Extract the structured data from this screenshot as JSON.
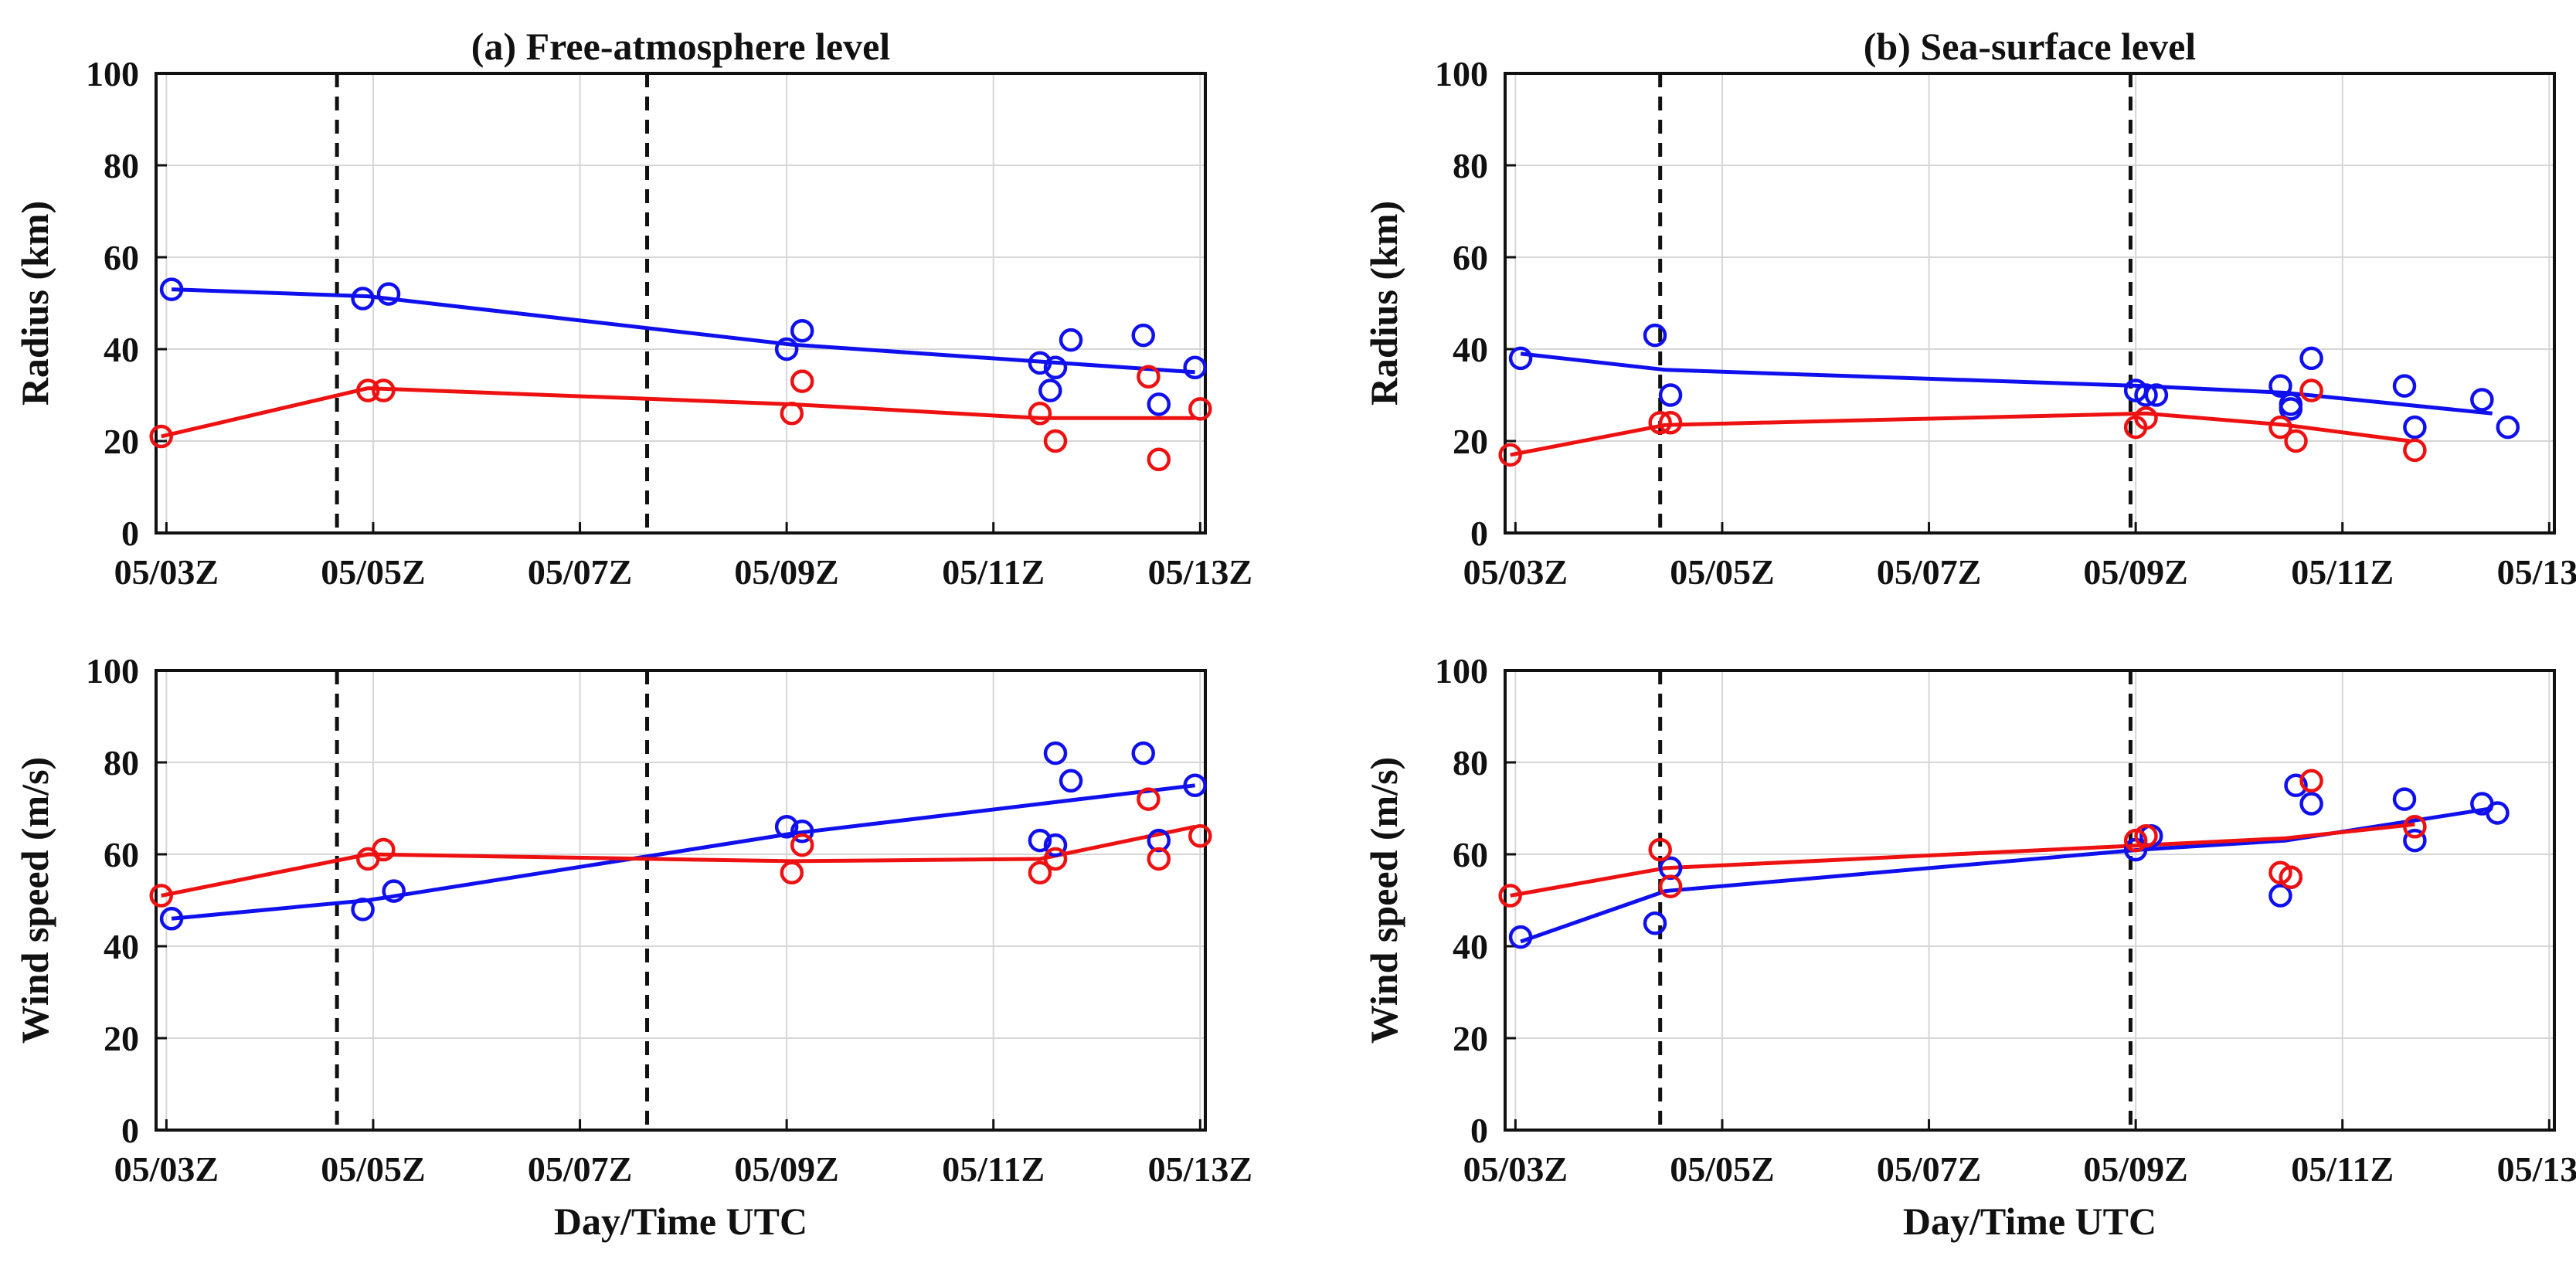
{
  "colors": {
    "blue": "#1010ee",
    "red": "#ee1111",
    "grid": "#d6d6d6",
    "axis": "#111111",
    "vline": "#111111"
  },
  "xticks": [
    "05/03Z",
    "05/05Z",
    "05/07Z",
    "05/09Z",
    "05/11Z",
    "05/13Z"
  ],
  "xtick_values": [
    0,
    2,
    4,
    6,
    8,
    10
  ],
  "yticks": [
    "0",
    "20",
    "40",
    "60",
    "80",
    "100"
  ],
  "chart_data": [
    {
      "id": "a-radius",
      "type": "line+scatter",
      "title": "(a) Free-atmosphere level",
      "ylabel": "Radius (km)",
      "xlabel": "",
      "xunit": "days since 05/03 00Z",
      "xlim": [
        -0.1,
        10.05
      ],
      "ylim": [
        0,
        100
      ],
      "grid": true,
      "vlines": [
        1.65,
        4.65
      ],
      "series": [
        {
          "name": "blue",
          "color": "blue",
          "line": [
            [
              0.05,
              53
            ],
            [
              1.95,
              51.5
            ],
            [
              6.05,
              41
            ],
            [
              9.95,
              35
            ]
          ],
          "points": [
            [
              0.05,
              53
            ],
            [
              1.9,
              51
            ],
            [
              2.15,
              52
            ],
            [
              6.0,
              40
            ],
            [
              6.15,
              44
            ],
            [
              8.45,
              37
            ],
            [
              8.55,
              31
            ],
            [
              8.6,
              36
            ],
            [
              8.75,
              42
            ],
            [
              9.45,
              43
            ],
            [
              9.6,
              28
            ],
            [
              9.95,
              36
            ]
          ]
        },
        {
          "name": "red",
          "color": "red",
          "line": [
            [
              -0.05,
              21
            ],
            [
              1.95,
              31.5
            ],
            [
              6.05,
              28
            ],
            [
              8.45,
              25
            ],
            [
              9.95,
              25
            ]
          ],
          "points": [
            [
              -0.05,
              21
            ],
            [
              1.95,
              31
            ],
            [
              2.1,
              31
            ],
            [
              6.05,
              26
            ],
            [
              6.15,
              33
            ],
            [
              8.45,
              26
            ],
            [
              8.6,
              20
            ],
            [
              9.5,
              34
            ],
            [
              9.6,
              16
            ],
            [
              10.0,
              27
            ]
          ]
        }
      ]
    },
    {
      "id": "b-radius",
      "type": "line+scatter",
      "title": "(b) Sea-surface level",
      "ylabel": "Radius (km)",
      "xlabel": "",
      "xunit": "days since 05/03 00Z",
      "xlim": [
        -0.1,
        10.05
      ],
      "ylim": [
        0,
        100
      ],
      "grid": true,
      "vlines": [
        1.4,
        5.95
      ],
      "series": [
        {
          "name": "blue",
          "color": "blue",
          "line": [
            [
              0.05,
              39
            ],
            [
              1.45,
              35.5
            ],
            [
              6.05,
              32
            ],
            [
              7.45,
              30.5
            ],
            [
              9.45,
              26
            ]
          ],
          "points": [
            [
              0.05,
              38
            ],
            [
              1.35,
              43
            ],
            [
              1.5,
              30
            ],
            [
              6.0,
              31
            ],
            [
              6.1,
              30
            ],
            [
              6.2,
              30
            ],
            [
              7.4,
              32
            ],
            [
              7.5,
              27
            ],
            [
              7.5,
              28
            ],
            [
              7.7,
              38
            ],
            [
              8.6,
              32
            ],
            [
              8.7,
              23
            ],
            [
              9.35,
              29
            ],
            [
              9.6,
              23
            ]
          ]
        },
        {
          "name": "red",
          "color": "red",
          "line": [
            [
              -0.05,
              17
            ],
            [
              1.45,
              23.5
            ],
            [
              6.1,
              26
            ],
            [
              7.45,
              23.5
            ],
            [
              8.65,
              20
            ]
          ],
          "points": [
            [
              -0.05,
              17
            ],
            [
              1.4,
              24
            ],
            [
              1.5,
              24
            ],
            [
              6.0,
              23
            ],
            [
              6.1,
              25
            ],
            [
              7.4,
              23
            ],
            [
              7.55,
              20
            ],
            [
              7.7,
              31
            ],
            [
              8.7,
              18
            ]
          ]
        }
      ]
    },
    {
      "id": "a-wind",
      "type": "line+scatter",
      "title": "",
      "ylabel": "Wind speed (m/s)",
      "xlabel": "Day/Time UTC",
      "xunit": "days since 05/03 00Z",
      "xlim": [
        -0.1,
        10.05
      ],
      "ylim": [
        0,
        100
      ],
      "grid": true,
      "vlines": [
        1.65,
        4.65
      ],
      "series": [
        {
          "name": "blue",
          "color": "blue",
          "line": [
            [
              0.05,
              46
            ],
            [
              1.95,
              50
            ],
            [
              6.05,
              64.5
            ],
            [
              9.95,
              75
            ]
          ],
          "points": [
            [
              0.05,
              46
            ],
            [
              1.9,
              48
            ],
            [
              2.2,
              52
            ],
            [
              6.0,
              66
            ],
            [
              6.15,
              65
            ],
            [
              8.45,
              63
            ],
            [
              8.6,
              82
            ],
            [
              8.6,
              62
            ],
            [
              8.75,
              76
            ],
            [
              9.45,
              82
            ],
            [
              9.6,
              63
            ],
            [
              9.95,
              75
            ]
          ]
        },
        {
          "name": "red",
          "color": "red",
          "line": [
            [
              -0.05,
              51
            ],
            [
              1.95,
              60
            ],
            [
              6.05,
              58.5
            ],
            [
              8.45,
              59
            ],
            [
              9.95,
              66
            ]
          ],
          "points": [
            [
              -0.05,
              51
            ],
            [
              1.95,
              59
            ],
            [
              2.1,
              61
            ],
            [
              6.05,
              56
            ],
            [
              6.15,
              62
            ],
            [
              8.45,
              56
            ],
            [
              8.6,
              59
            ],
            [
              9.5,
              72
            ],
            [
              9.6,
              59
            ],
            [
              10.0,
              64
            ]
          ]
        }
      ]
    },
    {
      "id": "b-wind",
      "type": "line+scatter",
      "title": "",
      "ylabel": "Wind speed (m/s)",
      "xlabel": "Day/Time UTC",
      "xunit": "days since 05/03 00Z",
      "xlim": [
        -0.1,
        10.05
      ],
      "ylim": [
        0,
        100
      ],
      "grid": true,
      "vlines": [
        1.4,
        5.95
      ],
      "series": [
        {
          "name": "blue",
          "color": "blue",
          "line": [
            [
              0.05,
              41
            ],
            [
              1.45,
              52
            ],
            [
              6.05,
              61
            ],
            [
              7.45,
              63
            ],
            [
              9.45,
              70
            ]
          ],
          "points": [
            [
              0.05,
              42
            ],
            [
              1.35,
              45
            ],
            [
              1.5,
              57
            ],
            [
              6.0,
              61
            ],
            [
              6.15,
              64
            ],
            [
              7.4,
              51
            ],
            [
              7.5,
              55
            ],
            [
              7.55,
              75
            ],
            [
              7.7,
              71
            ],
            [
              8.6,
              72
            ],
            [
              8.7,
              63
            ],
            [
              9.35,
              71
            ],
            [
              9.5,
              69
            ]
          ]
        },
        {
          "name": "red",
          "color": "red",
          "line": [
            [
              -0.05,
              51
            ],
            [
              1.45,
              57
            ],
            [
              6.1,
              62
            ],
            [
              7.45,
              63.5
            ],
            [
              8.7,
              66.5
            ]
          ],
          "points": [
            [
              -0.05,
              51
            ],
            [
              1.4,
              61
            ],
            [
              1.5,
              53
            ],
            [
              6.0,
              63
            ],
            [
              6.1,
              64
            ],
            [
              7.4,
              56
            ],
            [
              7.5,
              55
            ],
            [
              7.7,
              76
            ],
            [
              8.7,
              66
            ]
          ]
        }
      ]
    }
  ]
}
